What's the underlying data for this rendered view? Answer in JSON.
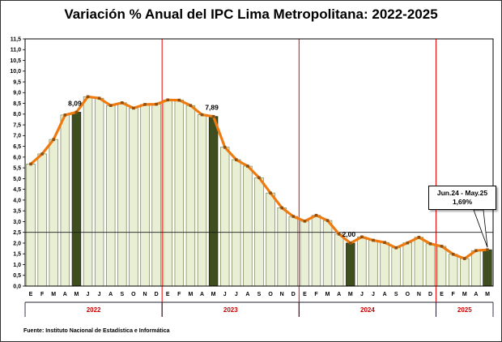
{
  "chart_data": {
    "type": "bar-line",
    "title": "Variación % Anual del IPC Lima Metropolitana: 2022-2025",
    "source": "Fuente: Instituto Nacional de Estadística e Informática",
    "ylim": [
      0,
      11.5
    ],
    "ytick_step": 0.5,
    "decimal_comma": true,
    "grid": "off",
    "legend": "none",
    "months": [
      "E",
      "F",
      "M",
      "A",
      "M",
      "J",
      "J",
      "A",
      "S",
      "O",
      "N",
      "D",
      "E",
      "F",
      "M",
      "A",
      "M",
      "J",
      "J",
      "A",
      "S",
      "O",
      "N",
      "D",
      "E",
      "F",
      "M",
      "A",
      "M",
      "J",
      "J",
      "A",
      "S",
      "O",
      "N",
      "D",
      "E",
      "F",
      "M",
      "A",
      "M"
    ],
    "values": [
      5.68,
      6.15,
      6.82,
      7.96,
      8.09,
      8.81,
      8.74,
      8.4,
      8.53,
      8.28,
      8.45,
      8.46,
      8.66,
      8.65,
      8.4,
      7.97,
      7.89,
      6.46,
      5.88,
      5.58,
      5.04,
      4.33,
      3.64,
      3.24,
      3.02,
      3.29,
      3.05,
      2.42,
      2.0,
      2.29,
      2.13,
      2.03,
      1.78,
      2.01,
      2.27,
      1.97,
      1.85,
      1.48,
      1.28,
      1.65,
      1.69
    ],
    "years": [
      {
        "label": "2022",
        "start": 0,
        "count": 12
      },
      {
        "label": "2023",
        "start": 12,
        "count": 12
      },
      {
        "label": "2024",
        "start": 24,
        "count": 12
      },
      {
        "label": "2025",
        "start": 36,
        "count": 5
      }
    ],
    "highlight_indices": [
      4,
      16,
      28,
      40
    ],
    "point_labels": [
      {
        "index": 4,
        "text": "8,09"
      },
      {
        "index": 16,
        "text": "7,89"
      },
      {
        "index": 28,
        "text": "2,00"
      }
    ],
    "year_separator_indices": [
      12,
      24,
      36
    ],
    "reference_line": 2.5,
    "callout": {
      "line1": "Jun.24 - May.25",
      "line2": "1,69%",
      "points_to_index": 40
    },
    "colors": {
      "bar_fill": "#e9efd5",
      "bar_stroke": "#75824d",
      "bar_highlight": "#3f4e1e",
      "bar_highlight_stroke": "#222a10",
      "line": "#ef7b10",
      "marker": "#8f4f0d",
      "separator": "#f00000",
      "year_label": "#d00000",
      "reference": "#1a1a1a",
      "bracket": "#222233"
    }
  }
}
